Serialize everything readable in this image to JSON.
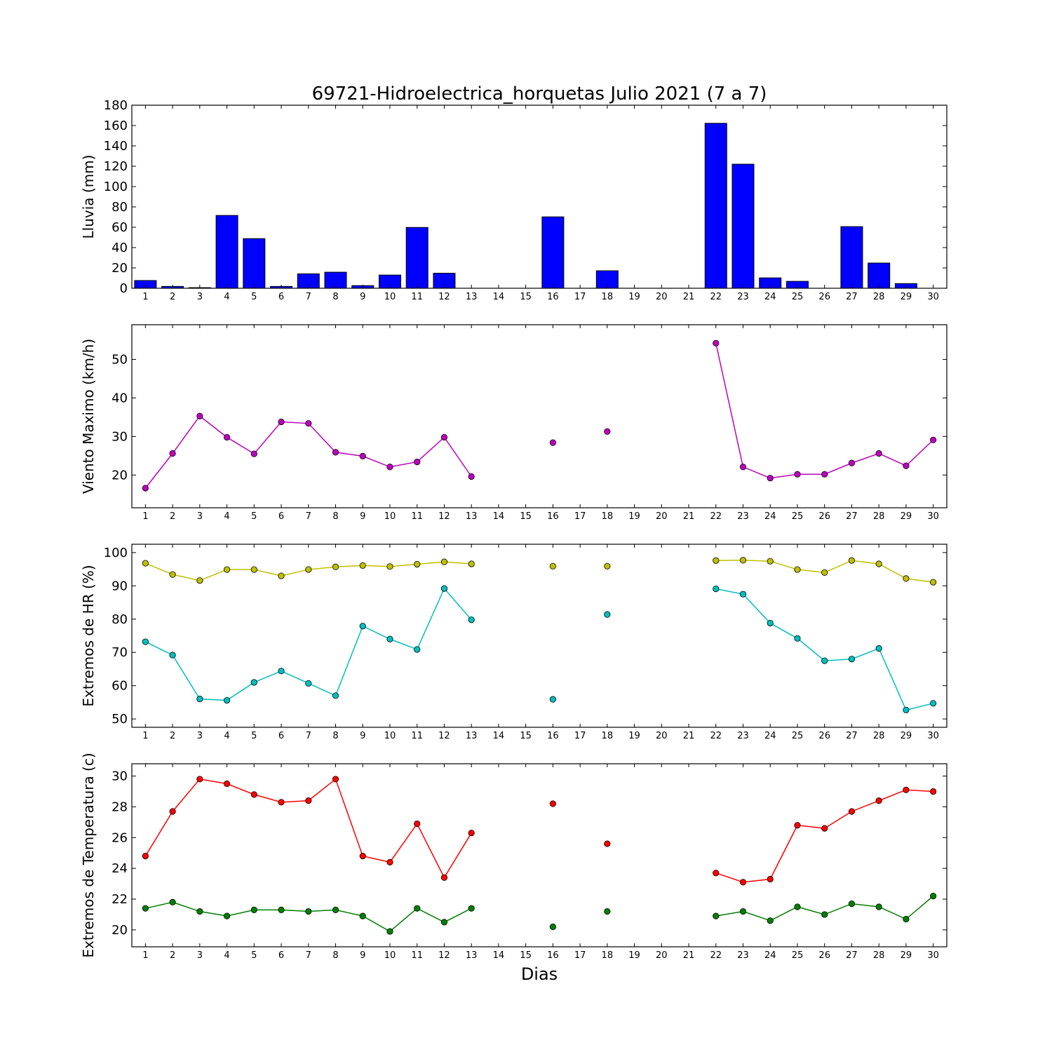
{
  "chart_data": [
    {
      "type": "bar",
      "title": "69721-Hidroelectrica_horquetas Julio 2021  (7 a 7)",
      "ylabel": "Lluvia (mm)",
      "xlabel": "",
      "ylim": [
        0,
        180
      ],
      "yticks": [
        0,
        20,
        40,
        60,
        80,
        100,
        120,
        140,
        160,
        180
      ],
      "categories": [
        1,
        2,
        3,
        4,
        5,
        6,
        7,
        8,
        9,
        10,
        11,
        12,
        13,
        14,
        15,
        16,
        17,
        18,
        19,
        20,
        21,
        22,
        23,
        24,
        25,
        26,
        27,
        28,
        29,
        30
      ],
      "colors": {
        "bar": "#0000ff"
      },
      "values": [
        7.6,
        1.8,
        0.6,
        71.6,
        48.8,
        1.8,
        14.2,
        15.8,
        2.6,
        13.0,
        59.8,
        14.8,
        0,
        0,
        0,
        70.2,
        0,
        17.2,
        0,
        0,
        0,
        162.2,
        122.0,
        10.2,
        6.8,
        0,
        60.6,
        24.8,
        4.6,
        0
      ]
    },
    {
      "type": "line",
      "title": "",
      "ylabel": "Viento Maximo (km/h)",
      "xlabel": "",
      "ylim": [
        11.5,
        59
      ],
      "yticks": [
        20,
        30,
        40,
        50
      ],
      "categories": [
        1,
        2,
        3,
        4,
        5,
        6,
        7,
        8,
        9,
        10,
        11,
        12,
        13,
        14,
        15,
        16,
        17,
        18,
        19,
        20,
        21,
        22,
        23,
        24,
        25,
        26,
        27,
        28,
        29,
        30
      ],
      "series": [
        {
          "color": "#bf00bf",
          "values": [
            16.6,
            25.6,
            35.3,
            29.8,
            25.5,
            33.8,
            33.4,
            25.9,
            24.9,
            22.1,
            23.4,
            29.8,
            19.6,
            null,
            null,
            28.4,
            null,
            31.3,
            null,
            null,
            null,
            54.2,
            22.1,
            19.2,
            20.2,
            20.2,
            23.1,
            25.6,
            22.4,
            29.1
          ]
        }
      ]
    },
    {
      "type": "line",
      "title": "",
      "ylabel": "Extremos de HR (%)",
      "xlabel": "",
      "ylim": [
        47.5,
        102.5
      ],
      "yticks": [
        50,
        60,
        70,
        80,
        90,
        100
      ],
      "categories": [
        1,
        2,
        3,
        4,
        5,
        6,
        7,
        8,
        9,
        10,
        11,
        12,
        13,
        14,
        15,
        16,
        17,
        18,
        19,
        20,
        21,
        22,
        23,
        24,
        25,
        26,
        27,
        28,
        29,
        30
      ],
      "series": [
        {
          "color": "#bfbf00",
          "values": [
            96.8,
            93.4,
            91.6,
            94.9,
            94.9,
            93.0,
            94.9,
            95.7,
            96.1,
            95.8,
            96.5,
            97.2,
            96.6,
            null,
            null,
            95.9,
            null,
            95.9,
            null,
            null,
            null,
            97.6,
            97.7,
            97.4,
            94.9,
            94.0,
            97.6,
            96.6,
            92.2,
            91.1
          ]
        },
        {
          "color": "#00bfbf",
          "values": [
            73.2,
            69.2,
            56.0,
            55.6,
            61.0,
            64.4,
            60.7,
            57.0,
            77.9,
            74.0,
            70.9,
            89.2,
            79.8,
            null,
            null,
            55.9,
            null,
            81.4,
            null,
            null,
            null,
            89.1,
            87.5,
            78.8,
            74.2,
            67.5,
            68.0,
            71.2,
            52.7,
            54.7
          ]
        }
      ]
    },
    {
      "type": "line",
      "title": "",
      "ylabel": "Extremos de Temperatura (c)",
      "xlabel": "Dias",
      "ylim": [
        18.9,
        30.8
      ],
      "yticks": [
        20,
        22,
        24,
        26,
        28,
        30
      ],
      "categories": [
        1,
        2,
        3,
        4,
        5,
        6,
        7,
        8,
        9,
        10,
        11,
        12,
        13,
        14,
        15,
        16,
        17,
        18,
        19,
        20,
        21,
        22,
        23,
        24,
        25,
        26,
        27,
        28,
        29,
        30
      ],
      "series": [
        {
          "color": "#ff0000",
          "values": [
            24.8,
            27.7,
            29.8,
            29.5,
            28.8,
            28.3,
            28.4,
            29.8,
            24.8,
            24.4,
            26.9,
            23.4,
            26.3,
            null,
            null,
            28.2,
            null,
            25.6,
            null,
            null,
            null,
            23.7,
            23.1,
            23.3,
            26.8,
            26.6,
            27.7,
            28.4,
            29.1,
            29.0
          ]
        },
        {
          "color": "#008000",
          "values": [
            21.4,
            21.8,
            21.2,
            20.9,
            21.3,
            21.3,
            21.2,
            21.3,
            20.9,
            19.9,
            21.4,
            20.5,
            21.4,
            null,
            null,
            20.2,
            null,
            21.2,
            null,
            null,
            null,
            20.9,
            21.2,
            20.6,
            21.5,
            21.0,
            21.7,
            21.5,
            20.7,
            22.2
          ]
        }
      ]
    }
  ]
}
